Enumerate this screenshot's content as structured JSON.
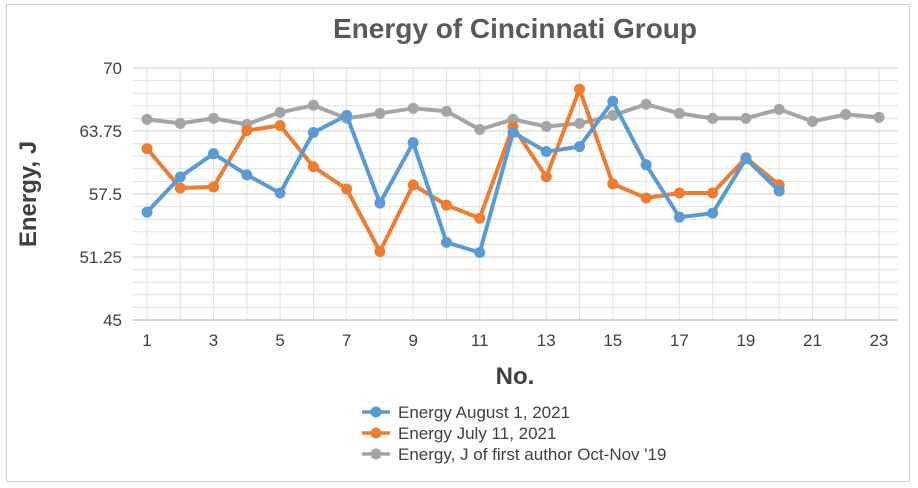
{
  "chart_data": {
    "type": "line",
    "title": "Energy of Cincinnati Group",
    "xlabel": "No.",
    "ylabel": "Energy, J",
    "ylim": [
      45,
      70
    ],
    "yticks": [
      45,
      51.25,
      57.5,
      63.75,
      70
    ],
    "ytick_labels": [
      "45",
      "51.25",
      "57.5",
      "63.75",
      "70"
    ],
    "xlim": [
      1,
      23
    ],
    "xticks": [
      1,
      3,
      5,
      7,
      9,
      11,
      13,
      15,
      17,
      19,
      21,
      23
    ],
    "xtick_labels": [
      "1",
      "3",
      "5",
      "7",
      "9",
      "11",
      "13",
      "15",
      "17",
      "19",
      "21",
      "23"
    ],
    "grid": true,
    "legend_position": "bottom",
    "series": [
      {
        "name": "Energy August 1, 2021",
        "color": "#5b9bd5",
        "x": [
          1,
          2,
          3,
          4,
          5,
          6,
          7,
          8,
          9,
          10,
          11,
          12,
          13,
          14,
          15,
          16,
          17,
          18,
          19,
          20
        ],
        "values": [
          55.7,
          59.2,
          61.5,
          59.4,
          57.6,
          63.6,
          65.3,
          56.6,
          62.6,
          52.7,
          51.7,
          63.6,
          61.7,
          62.2,
          66.7,
          60.4,
          55.2,
          55.6,
          61.0,
          57.8
        ]
      },
      {
        "name": "Energy July 11, 2021",
        "color": "#ed7d31",
        "x": [
          1,
          2,
          3,
          4,
          5,
          6,
          7,
          8,
          9,
          10,
          11,
          12,
          13,
          14,
          15,
          16,
          17,
          18,
          19,
          20
        ],
        "values": [
          62.0,
          58.1,
          58.2,
          63.8,
          64.3,
          60.2,
          58.0,
          51.8,
          58.4,
          56.4,
          55.1,
          64.2,
          59.2,
          67.9,
          58.5,
          57.1,
          57.6,
          57.6,
          61.1,
          58.4
        ]
      },
      {
        "name": "Energy, J of first author Oct-Nov '19",
        "color": "#a5a5a5",
        "x": [
          1,
          2,
          3,
          4,
          5,
          6,
          7,
          8,
          9,
          10,
          11,
          12,
          13,
          14,
          15,
          16,
          17,
          18,
          19,
          20,
          21,
          22,
          23
        ],
        "values": [
          64.9,
          64.5,
          65.0,
          64.4,
          65.6,
          66.3,
          65.0,
          65.5,
          66.0,
          65.7,
          63.9,
          64.9,
          64.2,
          64.5,
          65.3,
          66.4,
          65.5,
          65.0,
          65.0,
          65.9,
          64.7,
          65.4,
          65.1
        ]
      }
    ]
  }
}
